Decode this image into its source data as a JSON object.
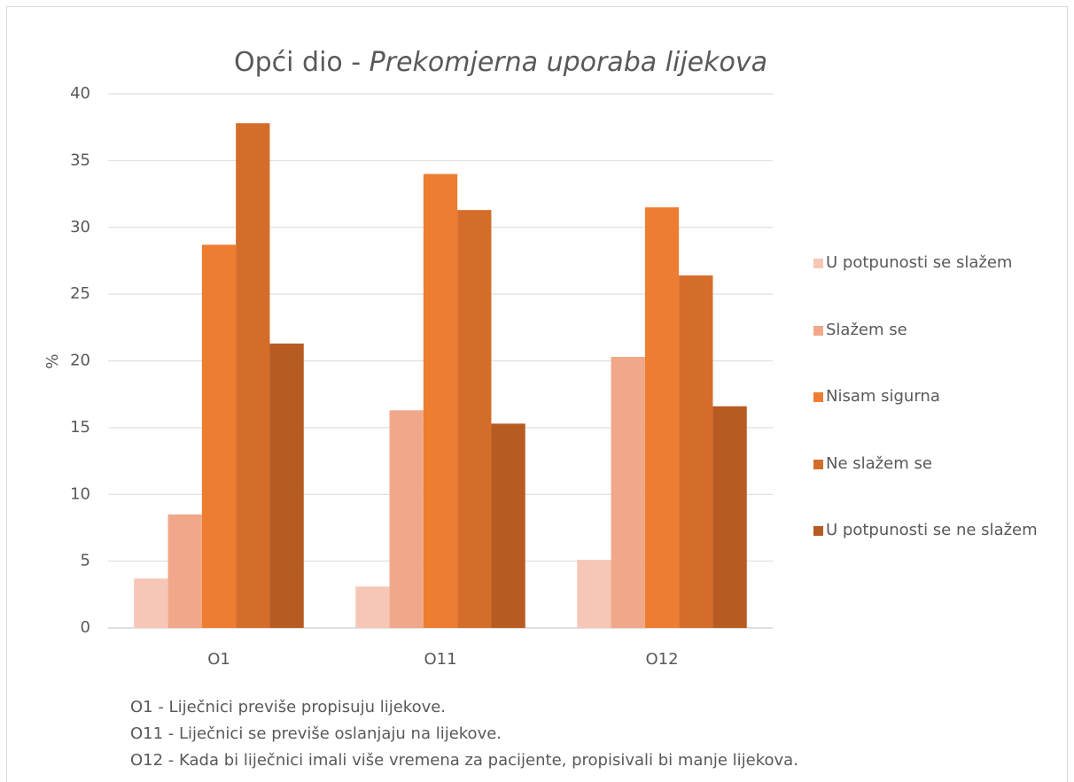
{
  "chart_data": {
    "type": "bar",
    "title": [
      "Opći dio - ",
      "Prekomjerna uporaba lijekova"
    ],
    "y_label": "%",
    "categories": [
      "O1",
      "O11",
      "O12"
    ],
    "series": [
      {
        "name": "U potpunosti se slažem",
        "color": "#f6c7b6",
        "values": [
          3.7,
          3.1,
          5.1
        ]
      },
      {
        "name": "Slažem se",
        "color": "#f1a88a",
        "values": [
          8.5,
          16.3,
          20.3
        ]
      },
      {
        "name": "Nisam sigurna",
        "color": "#ed7d31",
        "values": [
          28.7,
          34.0,
          31.5
        ]
      },
      {
        "name": "Ne slažem se",
        "color": "#d56d2a",
        "values": [
          37.8,
          31.3,
          26.4
        ]
      },
      {
        "name": "U potpunosti se ne slažem",
        "color": "#b65b22",
        "values": [
          21.3,
          15.3,
          16.6
        ]
      }
    ],
    "ylim": [
      0,
      40
    ],
    "yticks": [
      0,
      5,
      10,
      15,
      20,
      25,
      30,
      35,
      40
    ],
    "grid": true,
    "legend": "right",
    "notes": [
      "O1 - Liječnici previše propisuju lijekove.",
      "O11 - Liječnici se previše oslanjaju na lijekove.",
      "O12 - Kada bi liječnici imali više vremena za pacijente, propisivali bi manje lijekova."
    ]
  }
}
